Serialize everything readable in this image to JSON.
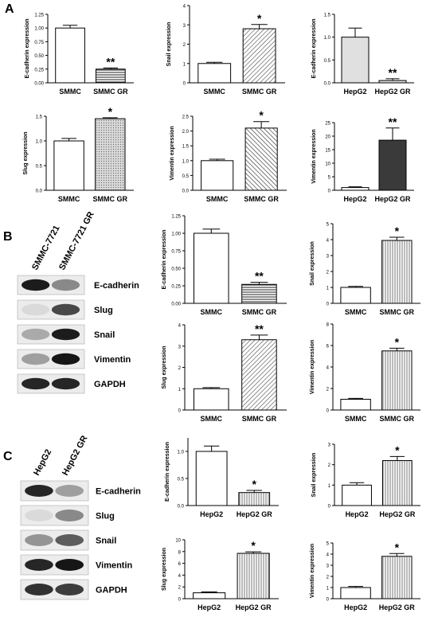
{
  "panels": {
    "A": "A",
    "B": "B",
    "C": "C"
  },
  "blots": [
    {
      "id": "B",
      "lanes": [
        "SMMC-7721",
        "SMMC-7721 GR"
      ],
      "bands": [
        "E-cadherin",
        "Slug",
        "Snail",
        "Vimentin",
        "GAPDH"
      ]
    },
    {
      "id": "C",
      "lanes": [
        "HepG2",
        "HepG2 GR"
      ],
      "bands": [
        "E-cadherin",
        "Slug",
        "Snail",
        "Vimentin",
        "GAPDH"
      ]
    }
  ],
  "chart_data": [
    {
      "type": "bar",
      "panel": "A",
      "ylabel": "E-cadherin expression",
      "categories": [
        "SMMC",
        "SMMC GR"
      ],
      "values": [
        1.0,
        0.25
      ],
      "errors": [
        0.05,
        0.02
      ],
      "ylim": [
        0,
        1.25
      ],
      "yticks": [
        "0.00",
        "0.25",
        "0.50",
        "0.75",
        "1.00",
        "1.25"
      ],
      "significance": "**",
      "fills": [
        "white",
        "hstripe"
      ]
    },
    {
      "type": "bar",
      "panel": "A",
      "ylabel": "Snail expression",
      "categories": [
        "SMMC",
        "SMMC GR"
      ],
      "values": [
        1.0,
        2.8
      ],
      "errors": [
        0.06,
        0.22
      ],
      "ylim": [
        0,
        4
      ],
      "yticks": [
        "0",
        "1",
        "2",
        "3",
        "4"
      ],
      "significance": "*",
      "fills": [
        "white",
        "dstripe"
      ]
    },
    {
      "type": "bar",
      "panel": "A",
      "ylabel": "E-cadherin expression",
      "categories": [
        "HepG2",
        "HepG2 GR"
      ],
      "values": [
        1.0,
        0.05
      ],
      "errors": [
        0.2,
        0.04
      ],
      "ylim": [
        0,
        1.5
      ],
      "yticks": [
        "0.0",
        "0.5",
        "1.0",
        "1.5"
      ],
      "significance": "**",
      "fills": [
        "lightgrey",
        "lightgrey"
      ]
    },
    {
      "type": "bar",
      "panel": "A",
      "ylabel": "Slug expression",
      "categories": [
        "SMMC",
        "SMMC GR"
      ],
      "values": [
        1.0,
        1.45
      ],
      "errors": [
        0.05,
        0.02
      ],
      "ylim": [
        0,
        1.5
      ],
      "yticks": [
        "0.0",
        "0.5",
        "1.0",
        "1.5"
      ],
      "significance": "*",
      "fills": [
        "white",
        "dots"
      ]
    },
    {
      "type": "bar",
      "panel": "A",
      "ylabel": "Vimentin expression",
      "categories": [
        "SMMC",
        "SMMC GR"
      ],
      "values": [
        1.0,
        2.1
      ],
      "errors": [
        0.05,
        0.22
      ],
      "ylim": [
        0,
        2.5
      ],
      "yticks": [
        "0.0",
        "0.5",
        "1.0",
        "1.5",
        "2.0",
        "2.5"
      ],
      "significance": "*",
      "fills": [
        "white",
        "bstripe"
      ]
    },
    {
      "type": "bar",
      "panel": "A",
      "ylabel": "Vimentin expression",
      "categories": [
        "HepG2",
        "HepG2 GR"
      ],
      "values": [
        1.0,
        18.5
      ],
      "errors": [
        0.3,
        4.5
      ],
      "ylim": [
        0,
        25
      ],
      "yticks": [
        "0",
        "5",
        "10",
        "15",
        "20",
        "25"
      ],
      "significance": "**",
      "fills": [
        "white",
        "dark"
      ]
    },
    {
      "type": "bar",
      "panel": "B",
      "ylabel": "E-cadherin expression",
      "categories": [
        "SMMC",
        "SMMC GR"
      ],
      "values": [
        1.0,
        0.27
      ],
      "errors": [
        0.06,
        0.03
      ],
      "ylim": [
        0,
        1.25
      ],
      "yticks": [
        "0.00",
        "0.25",
        "0.50",
        "0.75",
        "1.00",
        "1.25"
      ],
      "significance": "**",
      "fills": [
        "white",
        "hstripe"
      ]
    },
    {
      "type": "bar",
      "panel": "B",
      "ylabel": "Snail expression",
      "categories": [
        "SMMC",
        "SMMC GR"
      ],
      "values": [
        1.0,
        3.95
      ],
      "errors": [
        0.06,
        0.2
      ],
      "ylim": [
        0,
        5
      ],
      "yticks": [
        "0",
        "1",
        "2",
        "3",
        "4",
        "5"
      ],
      "significance": "*",
      "fills": [
        "white",
        "vstripe"
      ]
    },
    {
      "type": "bar",
      "panel": "B",
      "ylabel": "Slug expression",
      "categories": [
        "SMMC",
        "SMMC GR"
      ],
      "values": [
        1.0,
        3.3
      ],
      "errors": [
        0.05,
        0.22
      ],
      "ylim": [
        0,
        4
      ],
      "yticks": [
        "0",
        "1",
        "2",
        "3",
        "4"
      ],
      "significance": "**",
      "fills": [
        "white",
        "dstripe"
      ]
    },
    {
      "type": "bar",
      "panel": "B",
      "ylabel": "Vimentin expression",
      "categories": [
        "SMMC",
        "SMMC GR"
      ],
      "values": [
        1.0,
        5.5
      ],
      "errors": [
        0.08,
        0.25
      ],
      "ylim": [
        0,
        8
      ],
      "yticks": [
        "0",
        "2",
        "4",
        "6",
        "8"
      ],
      "significance": "*",
      "fills": [
        "white",
        "vstripe"
      ]
    },
    {
      "type": "bar",
      "panel": "C",
      "ylabel": "E-cadherin expression",
      "categories": [
        "HepG2",
        "HepG2 GR"
      ],
      "values": [
        1.0,
        0.24
      ],
      "errors": [
        0.1,
        0.04
      ],
      "ylim": [
        0,
        1.25
      ],
      "yticks": [
        "0.0",
        "0.5",
        "1.0"
      ],
      "significance": "*",
      "fills": [
        "white",
        "vstripe"
      ]
    },
    {
      "type": "bar",
      "panel": "C",
      "ylabel": "Snail expression",
      "categories": [
        "HepG2",
        "HepG2 GR"
      ],
      "values": [
        1.0,
        2.2
      ],
      "errors": [
        0.12,
        0.2
      ],
      "ylim": [
        0,
        3
      ],
      "yticks": [
        "0",
        "1",
        "2",
        "3"
      ],
      "significance": "*",
      "fills": [
        "white",
        "vstripe"
      ]
    },
    {
      "type": "bar",
      "panel": "C",
      "ylabel": "Slug expression",
      "categories": [
        "HepG2",
        "HepG2 GR"
      ],
      "values": [
        1.0,
        7.7
      ],
      "errors": [
        0.15,
        0.25
      ],
      "ylim": [
        0,
        10
      ],
      "yticks": [
        "0",
        "2",
        "4",
        "6",
        "8",
        "10"
      ],
      "significance": "*",
      "fills": [
        "white",
        "vstripe"
      ]
    },
    {
      "type": "bar",
      "panel": "C",
      "ylabel": "Vimentin expression",
      "categories": [
        "HepG2",
        "HepG2 GR"
      ],
      "values": [
        1.0,
        3.8
      ],
      "errors": [
        0.1,
        0.25
      ],
      "ylim": [
        0,
        5
      ],
      "yticks": [
        "0",
        "1",
        "2",
        "3",
        "4",
        "5"
      ],
      "significance": "*",
      "fills": [
        "white",
        "vstripe"
      ]
    }
  ]
}
